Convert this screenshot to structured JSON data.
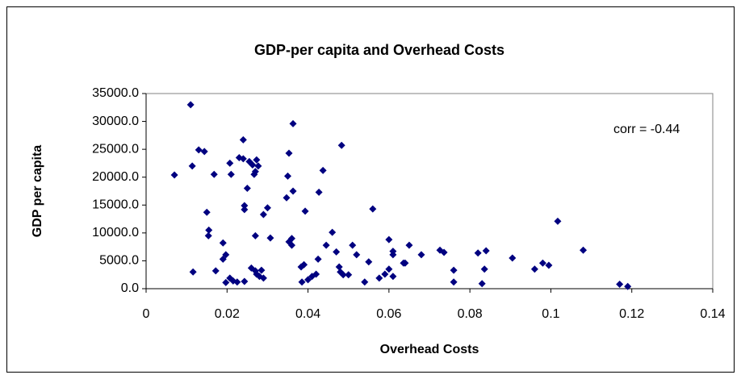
{
  "chart_data": {
    "type": "scatter",
    "title": "GDP-per capita and Overhead Costs",
    "x_label": "Overhead Costs",
    "y_label": "GDP per capita",
    "annotation": "corr = -0.44",
    "color": "#000080",
    "xlim": [
      0,
      0.14
    ],
    "xticks": [
      0,
      0.02,
      0.04,
      0.06,
      0.08,
      0.1,
      0.12,
      0.14
    ],
    "ylim": [
      0,
      35000
    ],
    "yticks": [
      {
        "value": 0,
        "label": "0.0"
      },
      {
        "value": 5000,
        "label": "5000.0"
      },
      {
        "value": 10000,
        "label": "10000.0"
      },
      {
        "value": 15000,
        "label": "15000.0"
      },
      {
        "value": 20000,
        "label": "20000.0"
      },
      {
        "value": 25000,
        "label": "25000.0"
      },
      {
        "value": 30000,
        "label": "30000.0"
      },
      {
        "value": 35000,
        "label": "35000.0"
      }
    ],
    "x": [
      0.007,
      0.011,
      0.0114,
      0.0116,
      0.013,
      0.0144,
      0.015,
      0.0155,
      0.0154,
      0.0168,
      0.0172,
      0.019,
      0.019,
      0.0197,
      0.0197,
      0.0207,
      0.021,
      0.0207,
      0.0215,
      0.0225,
      0.023,
      0.024,
      0.024,
      0.0243,
      0.0243,
      0.0243,
      0.025,
      0.0255,
      0.026,
      0.0263,
      0.0267,
      0.027,
      0.0273,
      0.0277,
      0.027,
      0.027,
      0.0273,
      0.028,
      0.0285,
      0.029,
      0.029,
      0.03,
      0.0307,
      0.035,
      0.0353,
      0.0353,
      0.036,
      0.0363,
      0.0363,
      0.0347,
      0.036,
      0.0383,
      0.0385,
      0.039,
      0.0393,
      0.04,
      0.041,
      0.042,
      0.0425,
      0.0427,
      0.0437,
      0.0445,
      0.046,
      0.047,
      0.0477,
      0.048,
      0.0483,
      0.0487,
      0.05,
      0.051,
      0.052,
      0.054,
      0.055,
      0.056,
      0.0576,
      0.059,
      0.06,
      0.06,
      0.061,
      0.061,
      0.061,
      0.0636,
      0.064,
      0.065,
      0.068,
      0.0726,
      0.0736,
      0.076,
      0.076,
      0.082,
      0.083,
      0.0836,
      0.084,
      0.0905,
      0.096,
      0.098,
      0.0995,
      0.1017,
      0.108,
      0.117,
      0.119
    ],
    "values": [
      20400,
      33000,
      22000,
      3000,
      24900,
      24600,
      13700,
      10500,
      9500,
      20500,
      3200,
      8200,
      5300,
      6100,
      1100,
      22500,
      20500,
      1900,
      1400,
      1200,
      23500,
      26700,
      23300,
      14900,
      14200,
      1300,
      18000,
      22800,
      3700,
      22200,
      20500,
      21000,
      23100,
      22000,
      9500,
      3200,
      2600,
      2200,
      3300,
      1900,
      13300,
      14500,
      9100,
      20200,
      24300,
      8400,
      7800,
      29600,
      17500,
      16300,
      9000,
      3900,
      1200,
      4300,
      13900,
      1600,
      2200,
      2600,
      5300,
      17300,
      21200,
      7800,
      10100,
      6600,
      3900,
      3000,
      25700,
      2500,
      2500,
      7800,
      6100,
      1200,
      4800,
      14300,
      1900,
      2600,
      8800,
      3500,
      6700,
      6100,
      2200,
      4600,
      4600,
      7800,
      6100,
      6900,
      6500,
      3300,
      1200,
      6400,
      900,
      3500,
      6800,
      5500,
      3500,
      4600,
      4200,
      12100,
      6900,
      800,
      400
    ]
  }
}
